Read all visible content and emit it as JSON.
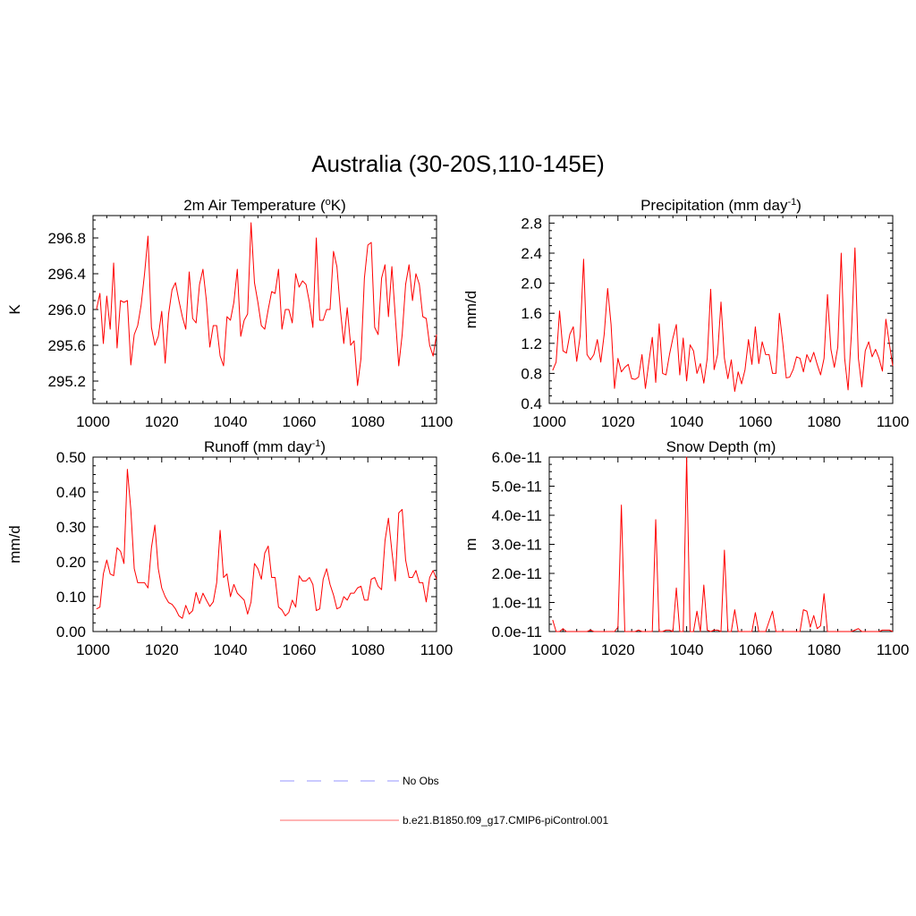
{
  "title": "Australia (30-20S,110-145E)",
  "legend": {
    "entries": [
      {
        "label": "No Obs",
        "color": "#aaaaff",
        "style": "dashed"
      },
      {
        "label": "b.e21.B1850.f09_g17.CMIP6-piControl.001",
        "color": "#ff8888",
        "style": "solid"
      }
    ]
  },
  "chart_data": [
    {
      "type": "line",
      "title": "2m Air Temperature (",
      "title_sup": "o",
      "title_after": "K)",
      "ylabel": "K",
      "xlim": [
        1000,
        1100
      ],
      "ylim": [
        294.95,
        297.05
      ],
      "xticks": [
        1000,
        1020,
        1040,
        1060,
        1080,
        1100
      ],
      "xticklabels": [
        "1000",
        "1020",
        "1040",
        "1060",
        "1080",
        "1100"
      ],
      "yticks": [
        295.2,
        295.6,
        296.0,
        296.4,
        296.8
      ],
      "yticklabels": [
        "295.2",
        "295.6",
        "296.0",
        "296.4",
        "296.8"
      ],
      "series": [
        {
          "name": "b.e21.B1850.f09_g17.CMIP6-piControl.001",
          "color": "#ff0000",
          "x_start": 1001,
          "values": [
            296.0,
            296.18,
            295.62,
            296.15,
            295.78,
            296.52,
            295.57,
            296.1,
            296.08,
            296.1,
            295.38,
            295.72,
            295.82,
            296.05,
            296.4,
            296.82,
            295.8,
            295.6,
            295.7,
            295.98,
            295.4,
            295.95,
            296.22,
            296.3,
            296.1,
            295.92,
            295.78,
            296.42,
            295.9,
            295.85,
            296.28,
            296.45,
            296.1,
            295.58,
            295.82,
            295.82,
            295.48,
            295.37,
            295.92,
            295.88,
            296.08,
            296.45,
            295.7,
            295.88,
            295.95,
            296.97,
            296.3,
            296.08,
            295.82,
            295.78,
            296.0,
            296.2,
            296.18,
            296.45,
            295.78,
            296.0,
            296.0,
            295.85,
            296.4,
            296.25,
            296.32,
            296.28,
            296.08,
            295.8,
            296.8,
            295.88,
            295.88,
            296.0,
            296.0,
            296.65,
            296.48,
            296.0,
            295.62,
            296.02,
            295.6,
            295.65,
            295.15,
            295.45,
            296.35,
            296.72,
            296.75,
            295.8,
            295.72,
            296.35,
            296.5,
            295.92,
            296.48,
            295.92,
            295.37,
            295.72,
            296.28,
            296.5,
            296.1,
            296.4,
            296.28,
            295.92,
            295.9,
            295.6,
            295.48,
            295.72
          ]
        }
      ]
    },
    {
      "type": "line",
      "title": "Precipitation (mm day",
      "title_sup": "-1",
      "title_after": ")",
      "ylabel": "mm/d",
      "xlim": [
        1000,
        1100
      ],
      "ylim": [
        0.4,
        2.9
      ],
      "xticks": [
        1000,
        1020,
        1040,
        1060,
        1080,
        1100
      ],
      "xticklabels": [
        "1000",
        "1020",
        "1040",
        "1060",
        "1080",
        "1100"
      ],
      "yticks": [
        0.4,
        0.8,
        1.2,
        1.6,
        2.0,
        2.4,
        2.8
      ],
      "yticklabels": [
        "0.4",
        "0.8",
        "1.2",
        "1.6",
        "2.0",
        "2.4",
        "2.8"
      ],
      "series": [
        {
          "name": "b.e21.B1850.f09_g17.CMIP6-piControl.001",
          "color": "#ff0000",
          "x_start": 1001,
          "values": [
            0.84,
            0.95,
            1.63,
            1.1,
            1.07,
            1.32,
            1.42,
            0.96,
            1.3,
            2.32,
            1.05,
            0.98,
            1.05,
            1.25,
            0.95,
            1.32,
            1.93,
            1.45,
            0.6,
            1.0,
            0.82,
            0.88,
            0.92,
            0.73,
            0.72,
            0.75,
            1.05,
            0.6,
            0.95,
            1.28,
            0.68,
            1.46,
            0.8,
            0.78,
            1.05,
            1.27,
            1.45,
            0.78,
            1.27,
            0.7,
            1.18,
            1.1,
            0.8,
            0.93,
            0.67,
            1.0,
            1.92,
            0.85,
            1.05,
            1.75,
            1.0,
            0.73,
            0.98,
            0.56,
            0.82,
            0.66,
            0.85,
            1.25,
            0.92,
            1.42,
            0.93,
            1.22,
            1.05,
            1.05,
            0.8,
            0.8,
            1.6,
            1.2,
            0.74,
            0.75,
            0.85,
            1.02,
            1.0,
            0.82,
            1.05,
            0.95,
            1.08,
            0.92,
            0.78,
            1.0,
            1.85,
            1.12,
            0.88,
            1.15,
            2.4,
            1.0,
            0.58,
            1.35,
            2.47,
            1.0,
            0.62,
            1.1,
            1.22,
            1.02,
            1.12,
            1.0,
            0.83,
            1.52,
            1.2,
            0.9
          ]
        }
      ]
    },
    {
      "type": "line",
      "title": "Runoff (mm day",
      "title_sup": "-1",
      "title_after": ")",
      "ylabel": "mm/d",
      "xlim": [
        1000,
        1100
      ],
      "ylim": [
        0.0,
        0.5
      ],
      "xticks": [
        1000,
        1020,
        1040,
        1060,
        1080,
        1100
      ],
      "xticklabels": [
        "1000",
        "1020",
        "1040",
        "1060",
        "1080",
        "1100"
      ],
      "yticks": [
        0.0,
        0.1,
        0.2,
        0.3,
        0.4,
        0.5
      ],
      "yticklabels": [
        "0.00",
        "0.10",
        "0.20",
        "0.30",
        "0.40",
        "0.50"
      ],
      "series": [
        {
          "name": "b.e21.B1850.f09_g17.CMIP6-piControl.001",
          "color": "#ff0000",
          "x_start": 1001,
          "values": [
            0.065,
            0.07,
            0.165,
            0.205,
            0.165,
            0.16,
            0.24,
            0.23,
            0.195,
            0.465,
            0.35,
            0.18,
            0.14,
            0.14,
            0.14,
            0.125,
            0.24,
            0.305,
            0.18,
            0.125,
            0.1,
            0.083,
            0.078,
            0.065,
            0.045,
            0.038,
            0.075,
            0.05,
            0.06,
            0.112,
            0.08,
            0.11,
            0.09,
            0.072,
            0.085,
            0.14,
            0.29,
            0.155,
            0.165,
            0.1,
            0.135,
            0.11,
            0.1,
            0.09,
            0.05,
            0.085,
            0.195,
            0.18,
            0.15,
            0.225,
            0.245,
            0.155,
            0.155,
            0.07,
            0.062,
            0.045,
            0.055,
            0.09,
            0.07,
            0.16,
            0.145,
            0.145,
            0.155,
            0.135,
            0.06,
            0.065,
            0.15,
            0.18,
            0.135,
            0.105,
            0.065,
            0.07,
            0.1,
            0.09,
            0.11,
            0.11,
            0.125,
            0.13,
            0.09,
            0.09,
            0.15,
            0.155,
            0.13,
            0.12,
            0.26,
            0.325,
            0.23,
            0.145,
            0.34,
            0.35,
            0.205,
            0.155,
            0.155,
            0.175,
            0.14,
            0.14,
            0.085,
            0.155,
            0.175,
            0.15
          ]
        }
      ]
    },
    {
      "type": "line",
      "title": "Snow Depth (m)",
      "title_sup": "",
      "title_after": "",
      "ylabel": "m",
      "xlim": [
        1000,
        1100
      ],
      "ylim": [
        0,
        6e-11
      ],
      "xticks": [
        1000,
        1020,
        1040,
        1060,
        1080,
        1100
      ],
      "xticklabels": [
        "1000",
        "1020",
        "1040",
        "1060",
        "1080",
        "1100"
      ],
      "yticks": [
        0,
        1e-11,
        2e-11,
        3e-11,
        4e-11,
        5e-11,
        6e-11
      ],
      "yticklabels": [
        "0.0e-11",
        "1.0e-11",
        "2.0e-11",
        "3.0e-11",
        "4.0e-11",
        "5.0e-11",
        "6.0e-11"
      ],
      "series": [
        {
          "name": "b.e21.B1850.f09_g17.CMIP6-piControl.001",
          "color": "#ff0000",
          "x_start": 1001,
          "values": [
            4e-12,
            0,
            0,
            1e-12,
            0,
            0,
            0,
            0,
            0,
            0,
            0,
            5e-13,
            0,
            0,
            0,
            0,
            0,
            0,
            0,
            1.5e-12,
            4.35e-11,
            0,
            0,
            0,
            0,
            5e-13,
            0,
            0,
            0,
            0,
            3.85e-11,
            0,
            0,
            5e-13,
            5e-13,
            0,
            1.5e-11,
            0,
            0,
            6e-11,
            0,
            0,
            7e-12,
            0,
            1.6e-11,
            5e-13,
            0,
            5e-13,
            5e-13,
            0,
            2.8e-11,
            0,
            0,
            7.5e-12,
            0,
            0,
            0,
            0,
            0,
            6.5e-12,
            0,
            0,
            0,
            3.5e-12,
            7e-12,
            0,
            0,
            0,
            0,
            0,
            0,
            0,
            0,
            7.5e-12,
            7e-12,
            1.5e-12,
            5.5e-12,
            1e-12,
            2e-12,
            1.3e-11,
            0,
            0,
            0,
            0,
            0,
            0,
            0,
            0,
            5e-13,
            1e-12,
            0,
            0,
            0,
            0,
            0,
            0,
            5e-13,
            5e-13,
            5e-13,
            0
          ]
        }
      ]
    }
  ]
}
